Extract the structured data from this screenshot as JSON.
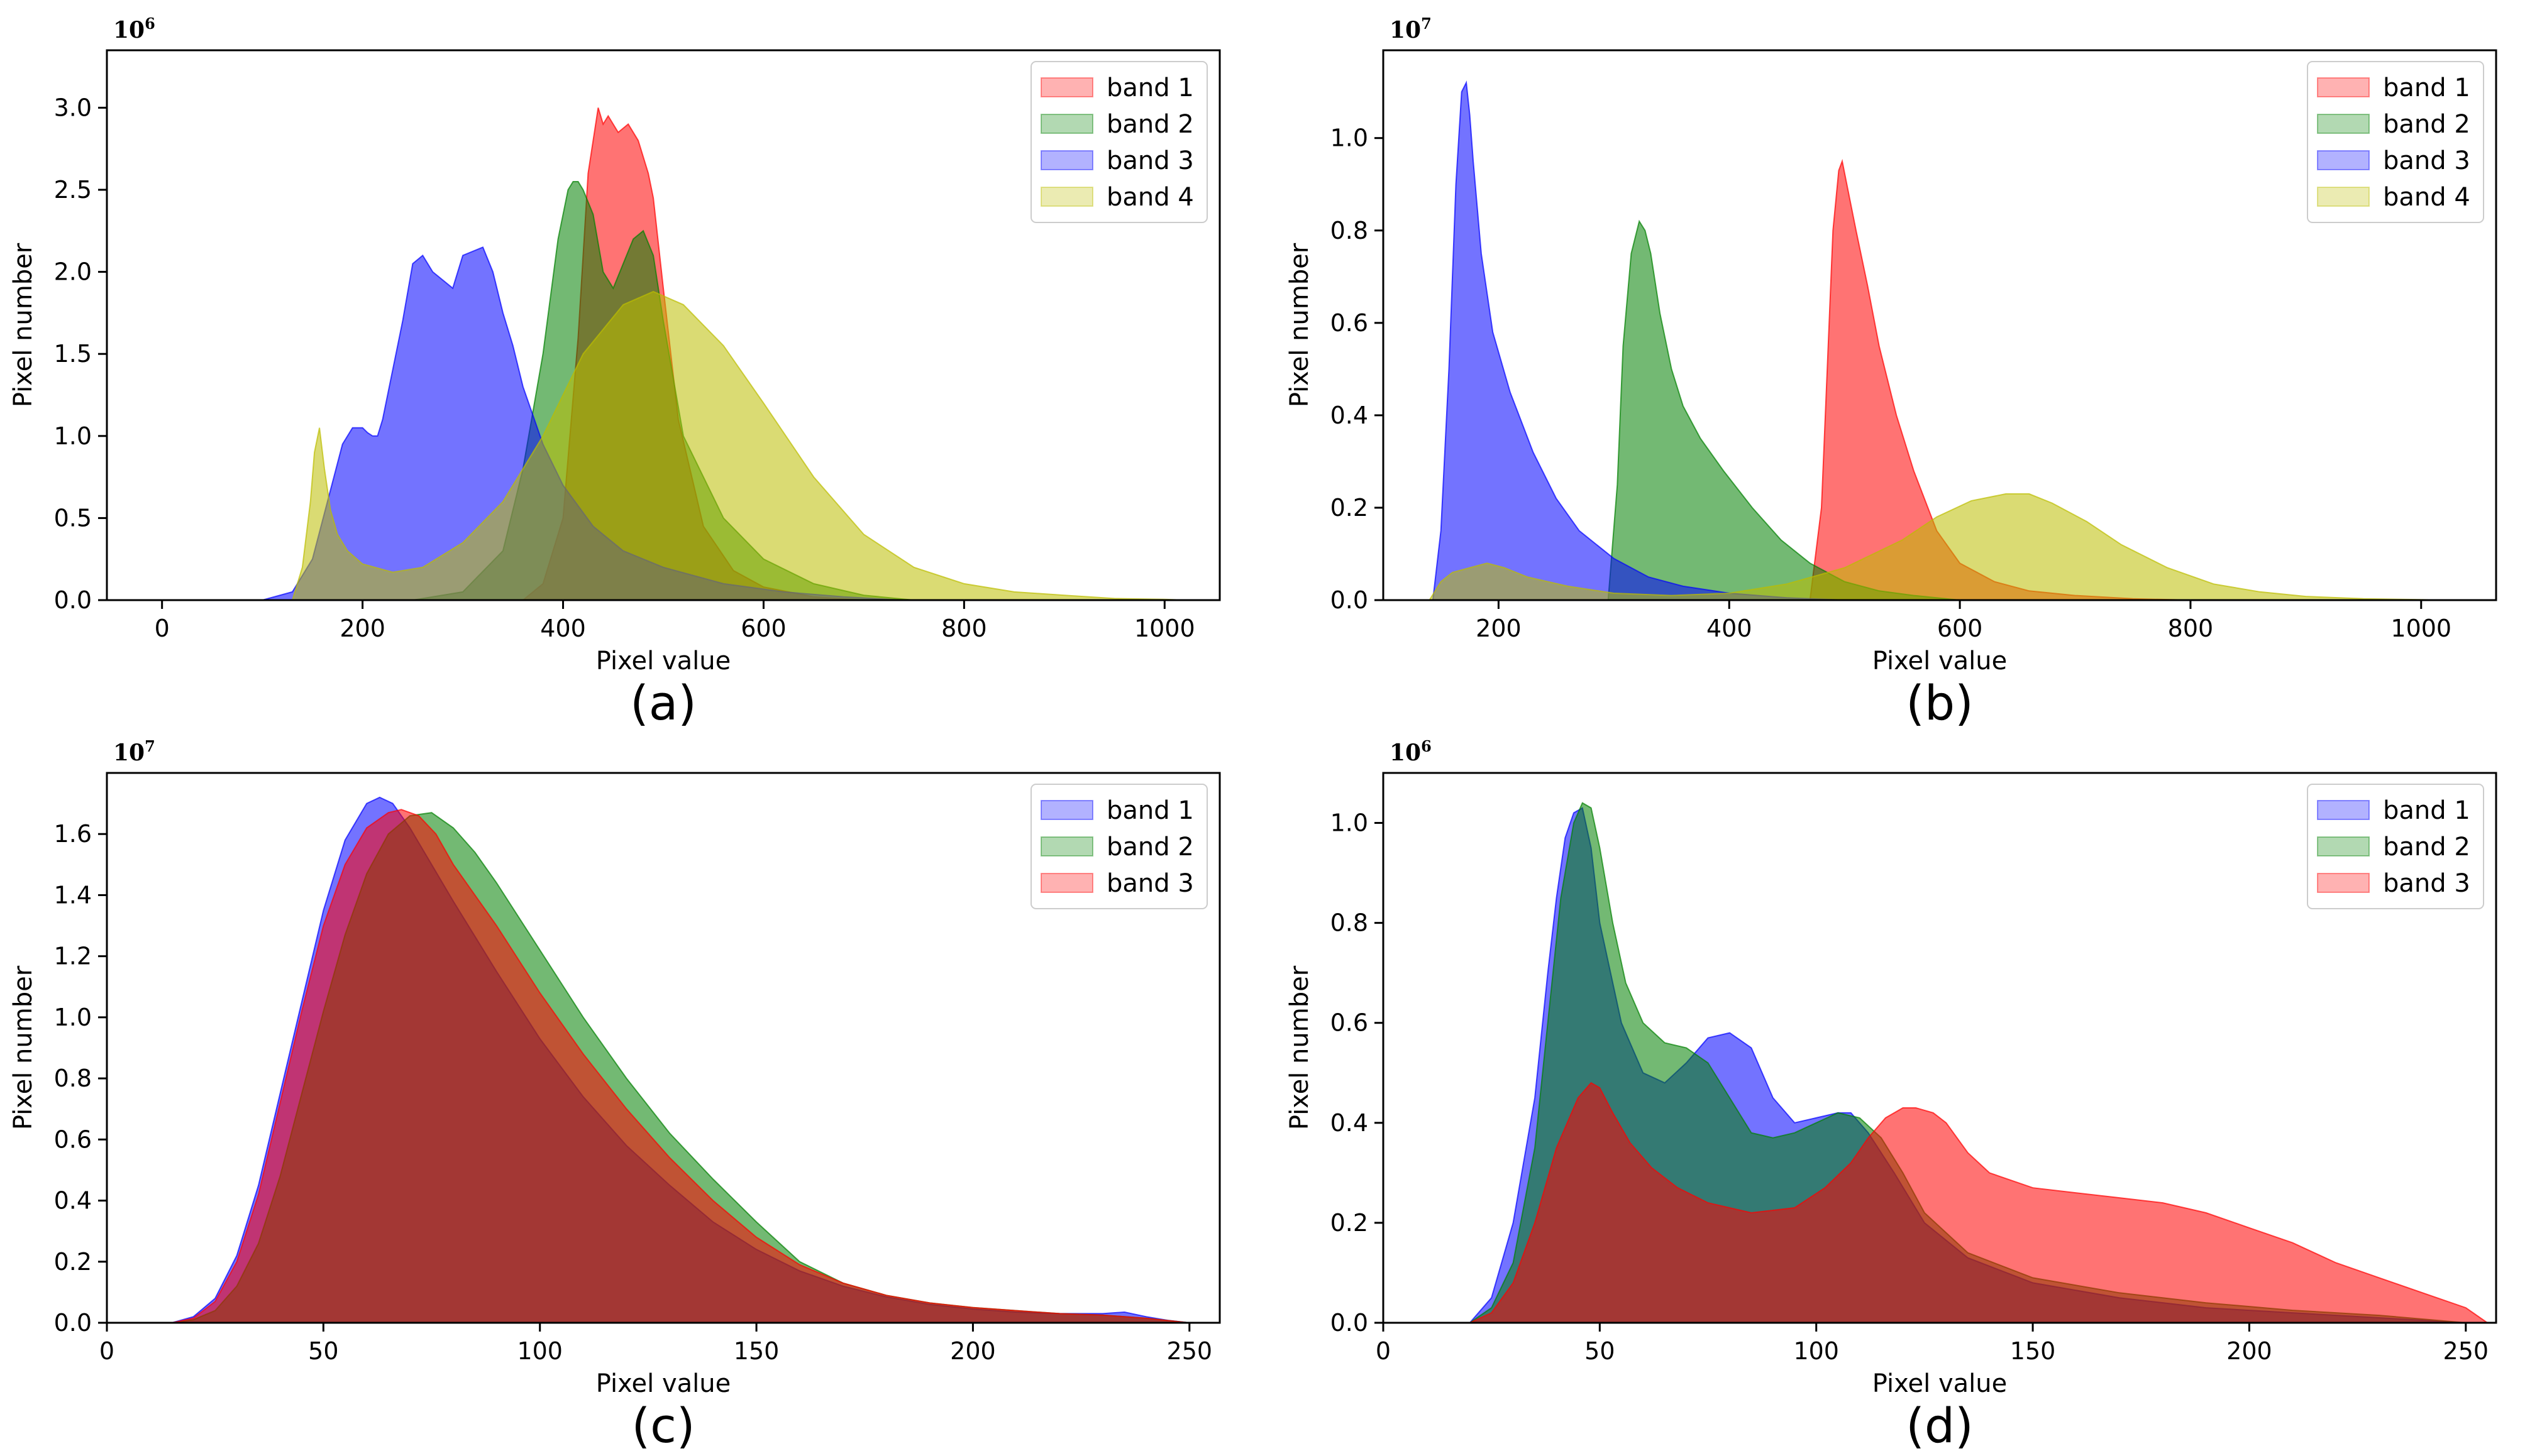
{
  "figure": {
    "panels": [
      {
        "id": "a",
        "caption": "(a)"
      },
      {
        "id": "b",
        "caption": "(b)"
      },
      {
        "id": "c",
        "caption": "(c)"
      },
      {
        "id": "d",
        "caption": "(d)"
      }
    ]
  },
  "chart_data": [
    {
      "id": "a",
      "type": "area",
      "caption": "(a)",
      "xlabel": "Pixel value",
      "ylabel": "Pixel number",
      "sci_base": "10",
      "sci_exp": "6",
      "xlim": [
        -55,
        1055
      ],
      "ylim": [
        0,
        3.35
      ],
      "xticks": [
        0,
        200,
        400,
        600,
        800,
        1000
      ],
      "xtick_labels": [
        "0",
        "200",
        "400",
        "600",
        "800",
        "1000"
      ],
      "yticks": [
        0,
        0.5,
        1.0,
        1.5,
        2.0,
        2.5,
        3.0
      ],
      "ytick_labels": [
        "0.0",
        "0.5",
        "1.0",
        "1.5",
        "2.0",
        "2.5",
        "3.0"
      ],
      "legend": {
        "position": "top-right",
        "labels": [
          "band 1",
          "band 2",
          "band 3",
          "band 4"
        ]
      },
      "series": [
        {
          "name": "band 1",
          "color": "#ff0000",
          "x": [
            360,
            380,
            400,
            415,
            425,
            435,
            440,
            445,
            455,
            465,
            475,
            485,
            490,
            500,
            515,
            540,
            570,
            600,
            650,
            700
          ],
          "y": [
            0,
            0.1,
            0.5,
            1.6,
            2.6,
            3.0,
            2.9,
            2.95,
            2.85,
            2.9,
            2.8,
            2.6,
            2.45,
            1.9,
            1.1,
            0.45,
            0.18,
            0.08,
            0.02,
            0
          ]
        },
        {
          "name": "band 2",
          "color": "#008000",
          "x": [
            250,
            300,
            340,
            360,
            380,
            395,
            405,
            410,
            415,
            420,
            430,
            440,
            450,
            460,
            470,
            480,
            490,
            500,
            520,
            560,
            600,
            650,
            700,
            750
          ],
          "y": [
            0,
            0.05,
            0.3,
            0.8,
            1.5,
            2.2,
            2.5,
            2.55,
            2.55,
            2.5,
            2.35,
            2.0,
            1.9,
            2.05,
            2.2,
            2.25,
            2.1,
            1.7,
            1.0,
            0.5,
            0.25,
            0.1,
            0.03,
            0
          ]
        },
        {
          "name": "band 3",
          "color": "#0000ff",
          "x": [
            100,
            130,
            150,
            165,
            180,
            190,
            200,
            205,
            210,
            215,
            220,
            240,
            250,
            260,
            270,
            290,
            300,
            320,
            330,
            340,
            350,
            360,
            380,
            400,
            430,
            460,
            500,
            560,
            620,
            680,
            740
          ],
          "y": [
            0,
            0.05,
            0.25,
            0.6,
            0.95,
            1.05,
            1.05,
            1.02,
            1.0,
            1.0,
            1.1,
            1.7,
            2.05,
            2.1,
            2.0,
            1.9,
            2.1,
            2.15,
            2.0,
            1.75,
            1.55,
            1.3,
            0.95,
            0.7,
            0.45,
            0.3,
            0.2,
            0.1,
            0.05,
            0.02,
            0
          ]
        },
        {
          "name": "band 4",
          "color": "#bcbd00",
          "x": [
            130,
            140,
            148,
            152,
            157,
            162,
            168,
            175,
            185,
            200,
            230,
            260,
            300,
            340,
            380,
            420,
            460,
            490,
            520,
            560,
            600,
            650,
            700,
            750,
            800,
            850,
            900,
            950,
            1000,
            1020
          ],
          "y": [
            0,
            0.2,
            0.6,
            0.9,
            1.05,
            0.8,
            0.55,
            0.4,
            0.3,
            0.22,
            0.17,
            0.2,
            0.35,
            0.6,
            1.0,
            1.5,
            1.8,
            1.88,
            1.8,
            1.55,
            1.2,
            0.75,
            0.4,
            0.2,
            0.1,
            0.05,
            0.03,
            0.01,
            0.005,
            0
          ]
        }
      ]
    },
    {
      "id": "b",
      "type": "area",
      "caption": "(b)",
      "xlabel": "Pixel value",
      "ylabel": "Pixel number",
      "sci_base": "10",
      "sci_exp": "7",
      "xlim": [
        100,
        1065
      ],
      "ylim": [
        0,
        1.19
      ],
      "xticks": [
        200,
        400,
        600,
        800,
        1000
      ],
      "xtick_labels": [
        "200",
        "400",
        "600",
        "800",
        "1000"
      ],
      "yticks": [
        0,
        0.2,
        0.4,
        0.6,
        0.8,
        1.0
      ],
      "ytick_labels": [
        "0.0",
        "0.2",
        "0.4",
        "0.6",
        "0.8",
        "1.0"
      ],
      "legend": {
        "position": "top-right",
        "labels": [
          "band 1",
          "band 2",
          "band 3",
          "band 4"
        ]
      },
      "series": [
        {
          "name": "band 1",
          "color": "#ff0000",
          "x": [
            470,
            480,
            485,
            490,
            495,
            498,
            502,
            510,
            520,
            530,
            545,
            560,
            580,
            600,
            630,
            660,
            700,
            750,
            800
          ],
          "y": [
            0,
            0.2,
            0.5,
            0.8,
            0.93,
            0.95,
            0.9,
            0.8,
            0.68,
            0.55,
            0.4,
            0.28,
            0.15,
            0.08,
            0.04,
            0.02,
            0.01,
            0.003,
            0
          ]
        },
        {
          "name": "band 2",
          "color": "#008000",
          "x": [
            295,
            303,
            308,
            315,
            322,
            327,
            332,
            340,
            350,
            360,
            375,
            395,
            420,
            445,
            470,
            500,
            530,
            560,
            600
          ],
          "y": [
            0,
            0.25,
            0.55,
            0.75,
            0.82,
            0.8,
            0.75,
            0.62,
            0.5,
            0.42,
            0.35,
            0.28,
            0.2,
            0.13,
            0.08,
            0.04,
            0.02,
            0.01,
            0
          ]
        },
        {
          "name": "band 3",
          "color": "#0000ff",
          "x": [
            143,
            150,
            157,
            163,
            168,
            172,
            175,
            178,
            185,
            195,
            210,
            230,
            250,
            270,
            300,
            330,
            360,
            400,
            450,
            500
          ],
          "y": [
            0,
            0.15,
            0.5,
            0.9,
            1.1,
            1.12,
            1.05,
            0.95,
            0.75,
            0.58,
            0.45,
            0.32,
            0.22,
            0.15,
            0.09,
            0.05,
            0.03,
            0.015,
            0.005,
            0
          ]
        },
        {
          "name": "band 4",
          "color": "#bcbd00",
          "x": [
            140,
            150,
            160,
            175,
            190,
            205,
            225,
            260,
            300,
            350,
            400,
            450,
            500,
            550,
            580,
            610,
            640,
            660,
            680,
            710,
            740,
            780,
            820,
            860,
            900,
            950,
            1000,
            1020
          ],
          "y": [
            0,
            0.04,
            0.06,
            0.07,
            0.08,
            0.07,
            0.05,
            0.03,
            0.015,
            0.01,
            0.015,
            0.035,
            0.07,
            0.13,
            0.18,
            0.215,
            0.23,
            0.23,
            0.21,
            0.17,
            0.12,
            0.07,
            0.035,
            0.018,
            0.008,
            0.003,
            0.001,
            0
          ]
        }
      ]
    },
    {
      "id": "c",
      "type": "area",
      "caption": "(c)",
      "xlabel": "Pixel value",
      "ylabel": "Pixel number",
      "sci_base": "10",
      "sci_exp": "7",
      "xlim": [
        0,
        257
      ],
      "ylim": [
        0,
        1.8
      ],
      "xticks": [
        0,
        50,
        100,
        150,
        200,
        250
      ],
      "xtick_labels": [
        "0",
        "50",
        "100",
        "150",
        "200",
        "250"
      ],
      "yticks": [
        0,
        0.2,
        0.4,
        0.6,
        0.8,
        1.0,
        1.2,
        1.4,
        1.6
      ],
      "ytick_labels": [
        "0.0",
        "0.2",
        "0.4",
        "0.6",
        "0.8",
        "1.0",
        "1.2",
        "1.4",
        "1.6"
      ],
      "legend": {
        "position": "top-right",
        "labels": [
          "band 1",
          "band 2",
          "band 3"
        ]
      },
      "series": [
        {
          "name": "band 1",
          "color": "#0000ff",
          "x": [
            15,
            20,
            25,
            30,
            35,
            40,
            45,
            50,
            55,
            60,
            63,
            66,
            70,
            75,
            80,
            90,
            100,
            110,
            120,
            130,
            140,
            150,
            160,
            170,
            180,
            190,
            200,
            210,
            220,
            230,
            235,
            240,
            245,
            250
          ],
          "y": [
            0,
            0.02,
            0.08,
            0.22,
            0.45,
            0.75,
            1.05,
            1.35,
            1.58,
            1.7,
            1.72,
            1.7,
            1.62,
            1.5,
            1.38,
            1.15,
            0.93,
            0.74,
            0.58,
            0.45,
            0.33,
            0.24,
            0.17,
            0.12,
            0.085,
            0.06,
            0.045,
            0.035,
            0.03,
            0.03,
            0.035,
            0.02,
            0.008,
            0
          ]
        },
        {
          "name": "band 2",
          "color": "#008000",
          "x": [
            15,
            20,
            25,
            30,
            35,
            40,
            45,
            50,
            55,
            60,
            65,
            70,
            75,
            80,
            85,
            90,
            100,
            110,
            120,
            130,
            140,
            150,
            160,
            170,
            180,
            190,
            200,
            210,
            220,
            230,
            240,
            250
          ],
          "y": [
            0,
            0.01,
            0.04,
            0.12,
            0.26,
            0.48,
            0.75,
            1.02,
            1.27,
            1.47,
            1.6,
            1.66,
            1.67,
            1.62,
            1.54,
            1.44,
            1.22,
            1.0,
            0.8,
            0.62,
            0.47,
            0.33,
            0.2,
            0.13,
            0.09,
            0.065,
            0.05,
            0.04,
            0.03,
            0.025,
            0.015,
            0
          ]
        },
        {
          "name": "band 3",
          "color": "#ff0000",
          "x": [
            15,
            20,
            25,
            30,
            35,
            40,
            45,
            50,
            55,
            60,
            65,
            68,
            72,
            76,
            80,
            90,
            100,
            110,
            120,
            130,
            140,
            150,
            160,
            170,
            180,
            190,
            200,
            210,
            220,
            230,
            240,
            250
          ],
          "y": [
            0,
            0.015,
            0.07,
            0.2,
            0.42,
            0.72,
            1.02,
            1.3,
            1.5,
            1.62,
            1.67,
            1.68,
            1.66,
            1.6,
            1.5,
            1.3,
            1.08,
            0.88,
            0.7,
            0.54,
            0.4,
            0.28,
            0.19,
            0.13,
            0.09,
            0.065,
            0.05,
            0.04,
            0.03,
            0.025,
            0.015,
            0
          ]
        }
      ]
    },
    {
      "id": "d",
      "type": "area",
      "caption": "(d)",
      "xlabel": "Pixel value",
      "ylabel": "Pixel number",
      "sci_base": "10",
      "sci_exp": "6",
      "xlim": [
        0,
        257
      ],
      "ylim": [
        0,
        1.1
      ],
      "xticks": [
        0,
        50,
        100,
        150,
        200,
        250
      ],
      "xtick_labels": [
        "0",
        "50",
        "100",
        "150",
        "200",
        "250"
      ],
      "yticks": [
        0,
        0.2,
        0.4,
        0.6,
        0.8,
        1.0
      ],
      "ytick_labels": [
        "0.0",
        "0.2",
        "0.4",
        "0.6",
        "0.8",
        "1.0"
      ],
      "legend": {
        "position": "top-right",
        "labels": [
          "band 1",
          "band 2",
          "band 3"
        ]
      },
      "series": [
        {
          "name": "band 1",
          "color": "#0000ff",
          "x": [
            20,
            25,
            30,
            35,
            38,
            40,
            42,
            44,
            46,
            48,
            50,
            55,
            60,
            65,
            70,
            75,
            80,
            85,
            90,
            95,
            100,
            105,
            108,
            112,
            118,
            125,
            135,
            150,
            170,
            190,
            210,
            230,
            250
          ],
          "y": [
            0,
            0.05,
            0.2,
            0.45,
            0.7,
            0.85,
            0.97,
            1.02,
            1.03,
            0.95,
            0.8,
            0.6,
            0.5,
            0.48,
            0.52,
            0.57,
            0.58,
            0.55,
            0.45,
            0.4,
            0.41,
            0.42,
            0.42,
            0.38,
            0.3,
            0.2,
            0.13,
            0.08,
            0.05,
            0.03,
            0.02,
            0.01,
            0
          ]
        },
        {
          "name": "band 2",
          "color": "#008000",
          "x": [
            20,
            25,
            30,
            35,
            38,
            41,
            44,
            46,
            48,
            50,
            53,
            56,
            60,
            65,
            70,
            75,
            80,
            85,
            90,
            95,
            100,
            105,
            110,
            115,
            120,
            125,
            135,
            150,
            170,
            190,
            210,
            230,
            250
          ],
          "y": [
            0,
            0.03,
            0.12,
            0.35,
            0.6,
            0.85,
            1.0,
            1.04,
            1.03,
            0.95,
            0.8,
            0.68,
            0.6,
            0.56,
            0.55,
            0.52,
            0.45,
            0.38,
            0.37,
            0.38,
            0.4,
            0.42,
            0.41,
            0.37,
            0.3,
            0.22,
            0.14,
            0.09,
            0.06,
            0.04,
            0.025,
            0.015,
            0
          ]
        },
        {
          "name": "band 3",
          "color": "#ff0000",
          "x": [
            20,
            25,
            30,
            35,
            40,
            45,
            48,
            50,
            53,
            57,
            62,
            68,
            75,
            85,
            95,
            102,
            108,
            112,
            116,
            120,
            123,
            127,
            130,
            135,
            140,
            150,
            160,
            170,
            180,
            190,
            200,
            210,
            220,
            230,
            240,
            250,
            255
          ],
          "y": [
            0,
            0.02,
            0.08,
            0.2,
            0.35,
            0.45,
            0.48,
            0.47,
            0.42,
            0.36,
            0.31,
            0.27,
            0.24,
            0.22,
            0.23,
            0.27,
            0.32,
            0.37,
            0.41,
            0.43,
            0.43,
            0.42,
            0.4,
            0.34,
            0.3,
            0.27,
            0.26,
            0.25,
            0.24,
            0.22,
            0.19,
            0.16,
            0.12,
            0.09,
            0.06,
            0.03,
            0
          ]
        }
      ]
    }
  ]
}
